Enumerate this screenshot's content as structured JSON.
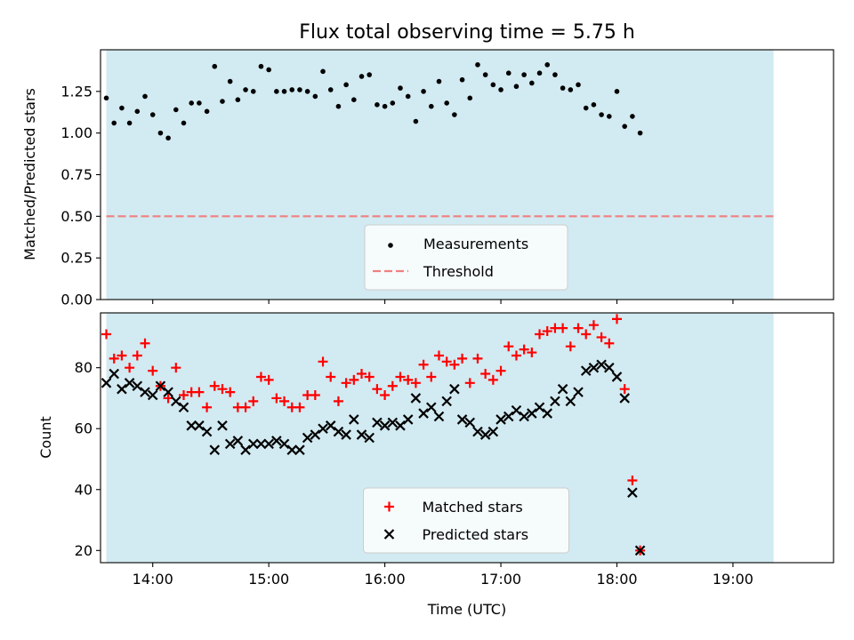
{
  "chart_data": {
    "type": "scatter",
    "title": "Flux total observing time = 5.75 h",
    "xlabel": "Time (UTC)",
    "x_ticks": [
      "14:00",
      "15:00",
      "16:00",
      "17:00",
      "18:00",
      "19:00"
    ],
    "xlim": [
      "13:33",
      "19:52"
    ],
    "observing_window": [
      "13:36",
      "19:21"
    ],
    "colors": {
      "window_fill": "#add8e6",
      "measurements": "#000000",
      "threshold": "#f08080",
      "matched": "#ff0000",
      "predicted": "#000000"
    },
    "panels": [
      {
        "ylabel": "Matched/Predicted stars",
        "ylim": [
          0,
          1.5
        ],
        "y_ticks": [
          "0.00",
          "0.25",
          "0.50",
          "0.75",
          "1.00",
          "1.25"
        ],
        "legend_position": "bottom-center",
        "legend": [
          "Measurements",
          "Threshold"
        ],
        "threshold": 0.5,
        "series": [
          {
            "name": "Measurements",
            "marker": "dot",
            "points": [
              [
                "13:36",
                1.21
              ],
              [
                "13:40",
                1.06
              ],
              [
                "13:44",
                1.15
              ],
              [
                "13:48",
                1.06
              ],
              [
                "13:52",
                1.13
              ],
              [
                "13:56",
                1.22
              ],
              [
                "14:00",
                1.11
              ],
              [
                "14:04",
                1.0
              ],
              [
                "14:08",
                0.97
              ],
              [
                "14:12",
                1.14
              ],
              [
                "14:16",
                1.06
              ],
              [
                "14:20",
                1.18
              ],
              [
                "14:24",
                1.18
              ],
              [
                "14:28",
                1.13
              ],
              [
                "14:32",
                1.4
              ],
              [
                "14:36",
                1.19
              ],
              [
                "14:40",
                1.31
              ],
              [
                "14:44",
                1.2
              ],
              [
                "14:48",
                1.26
              ],
              [
                "14:52",
                1.25
              ],
              [
                "14:56",
                1.4
              ],
              [
                "15:00",
                1.38
              ],
              [
                "15:04",
                1.25
              ],
              [
                "15:08",
                1.25
              ],
              [
                "15:12",
                1.26
              ],
              [
                "15:16",
                1.26
              ],
              [
                "15:20",
                1.25
              ],
              [
                "15:24",
                1.22
              ],
              [
                "15:28",
                1.37
              ],
              [
                "15:32",
                1.26
              ],
              [
                "15:36",
                1.16
              ],
              [
                "15:40",
                1.29
              ],
              [
                "15:44",
                1.2
              ],
              [
                "15:48",
                1.34
              ],
              [
                "15:52",
                1.35
              ],
              [
                "15:56",
                1.17
              ],
              [
                "16:00",
                1.16
              ],
              [
                "16:04",
                1.18
              ],
              [
                "16:08",
                1.27
              ],
              [
                "16:12",
                1.22
              ],
              [
                "16:16",
                1.07
              ],
              [
                "16:20",
                1.25
              ],
              [
                "16:24",
                1.16
              ],
              [
                "16:28",
                1.31
              ],
              [
                "16:32",
                1.18
              ],
              [
                "16:36",
                1.11
              ],
              [
                "16:40",
                1.32
              ],
              [
                "16:44",
                1.21
              ],
              [
                "16:48",
                1.41
              ],
              [
                "16:52",
                1.35
              ],
              [
                "16:56",
                1.29
              ],
              [
                "17:00",
                1.26
              ],
              [
                "17:04",
                1.36
              ],
              [
                "17:08",
                1.28
              ],
              [
                "17:12",
                1.35
              ],
              [
                "17:16",
                1.3
              ],
              [
                "17:20",
                1.36
              ],
              [
                "17:24",
                1.41
              ],
              [
                "17:28",
                1.35
              ],
              [
                "17:32",
                1.27
              ],
              [
                "17:36",
                1.26
              ],
              [
                "17:40",
                1.29
              ],
              [
                "17:44",
                1.15
              ],
              [
                "17:48",
                1.17
              ],
              [
                "17:52",
                1.11
              ],
              [
                "17:56",
                1.1
              ],
              [
                "18:00",
                1.25
              ],
              [
                "18:04",
                1.04
              ],
              [
                "18:08",
                1.1
              ],
              [
                "18:12",
                1.0
              ]
            ]
          }
        ]
      },
      {
        "ylabel": "Count",
        "ylim": [
          16,
          98
        ],
        "y_ticks": [
          "20",
          "40",
          "60",
          "80"
        ],
        "legend_position": "bottom-center",
        "legend": [
          "Matched stars",
          "Predicted stars"
        ],
        "series": [
          {
            "name": "Matched stars",
            "marker": "plus",
            "points": [
              [
                "13:36",
                91
              ],
              [
                "13:40",
                83
              ],
              [
                "13:44",
                84
              ],
              [
                "13:48",
                80
              ],
              [
                "13:52",
                84
              ],
              [
                "13:56",
                88
              ],
              [
                "14:00",
                79
              ],
              [
                "14:04",
                74
              ],
              [
                "14:08",
                70
              ],
              [
                "14:12",
                80
              ],
              [
                "14:16",
                71
              ],
              [
                "14:20",
                72
              ],
              [
                "14:24",
                72
              ],
              [
                "14:28",
                67
              ],
              [
                "14:32",
                74
              ],
              [
                "14:36",
                73
              ],
              [
                "14:40",
                72
              ],
              [
                "14:44",
                67
              ],
              [
                "14:48",
                67
              ],
              [
                "14:52",
                69
              ],
              [
                "14:56",
                77
              ],
              [
                "15:00",
                76
              ],
              [
                "15:04",
                70
              ],
              [
                "15:08",
                69
              ],
              [
                "15:12",
                67
              ],
              [
                "15:16",
                67
              ],
              [
                "15:20",
                71
              ],
              [
                "15:24",
                71
              ],
              [
                "15:28",
                82
              ],
              [
                "15:32",
                77
              ],
              [
                "15:36",
                69
              ],
              [
                "15:40",
                75
              ],
              [
                "15:44",
                76
              ],
              [
                "15:48",
                78
              ],
              [
                "15:52",
                77
              ],
              [
                "15:56",
                73
              ],
              [
                "16:00",
                71
              ],
              [
                "16:04",
                74
              ],
              [
                "16:08",
                77
              ],
              [
                "16:12",
                76
              ],
              [
                "16:16",
                75
              ],
              [
                "16:20",
                81
              ],
              [
                "16:24",
                77
              ],
              [
                "16:28",
                84
              ],
              [
                "16:32",
                82
              ],
              [
                "16:36",
                81
              ],
              [
                "16:40",
                83
              ],
              [
                "16:44",
                75
              ],
              [
                "16:48",
                83
              ],
              [
                "16:52",
                78
              ],
              [
                "16:56",
                76
              ],
              [
                "17:00",
                79
              ],
              [
                "17:04",
                87
              ],
              [
                "17:08",
                84
              ],
              [
                "17:12",
                86
              ],
              [
                "17:16",
                85
              ],
              [
                "17:20",
                91
              ],
              [
                "17:24",
                92
              ],
              [
                "17:28",
                93
              ],
              [
                "17:32",
                93
              ],
              [
                "17:36",
                87
              ],
              [
                "17:40",
                93
              ],
              [
                "17:44",
                91
              ],
              [
                "17:48",
                94
              ],
              [
                "17:52",
                90
              ],
              [
                "17:56",
                88
              ],
              [
                "18:00",
                96
              ],
              [
                "18:04",
                73
              ],
              [
                "18:08",
                43
              ],
              [
                "18:12",
                20
              ]
            ]
          },
          {
            "name": "Predicted stars",
            "marker": "x",
            "points": [
              [
                "13:36",
                75
              ],
              [
                "13:40",
                78
              ],
              [
                "13:44",
                73
              ],
              [
                "13:48",
                75
              ],
              [
                "13:52",
                74
              ],
              [
                "13:56",
                72
              ],
              [
                "14:00",
                71
              ],
              [
                "14:04",
                74
              ],
              [
                "14:08",
                72
              ],
              [
                "14:12",
                69
              ],
              [
                "14:16",
                67
              ],
              [
                "14:20",
                61
              ],
              [
                "14:24",
                61
              ],
              [
                "14:28",
                59
              ],
              [
                "14:32",
                53
              ],
              [
                "14:36",
                61
              ],
              [
                "14:40",
                55
              ],
              [
                "14:44",
                56
              ],
              [
                "14:48",
                53
              ],
              [
                "14:52",
                55
              ],
              [
                "14:56",
                55
              ],
              [
                "15:00",
                55
              ],
              [
                "15:04",
                56
              ],
              [
                "15:08",
                55
              ],
              [
                "15:12",
                53
              ],
              [
                "15:16",
                53
              ],
              [
                "15:20",
                57
              ],
              [
                "15:24",
                58
              ],
              [
                "15:28",
                60
              ],
              [
                "15:32",
                61
              ],
              [
                "15:36",
                59
              ],
              [
                "15:40",
                58
              ],
              [
                "15:44",
                63
              ],
              [
                "15:48",
                58
              ],
              [
                "15:52",
                57
              ],
              [
                "15:56",
                62
              ],
              [
                "16:00",
                61
              ],
              [
                "16:04",
                62
              ],
              [
                "16:08",
                61
              ],
              [
                "16:12",
                63
              ],
              [
                "16:16",
                70
              ],
              [
                "16:20",
                65
              ],
              [
                "16:24",
                67
              ],
              [
                "16:28",
                64
              ],
              [
                "16:32",
                69
              ],
              [
                "16:36",
                73
              ],
              [
                "16:40",
                63
              ],
              [
                "16:44",
                62
              ],
              [
                "16:48",
                59
              ],
              [
                "16:52",
                58
              ],
              [
                "16:56",
                59
              ],
              [
                "17:00",
                63
              ],
              [
                "17:04",
                64
              ],
              [
                "17:08",
                66
              ],
              [
                "17:12",
                64
              ],
              [
                "17:16",
                65
              ],
              [
                "17:20",
                67
              ],
              [
                "17:24",
                65
              ],
              [
                "17:28",
                69
              ],
              [
                "17:32",
                73
              ],
              [
                "17:36",
                69
              ],
              [
                "17:40",
                72
              ],
              [
                "17:44",
                79
              ],
              [
                "17:48",
                80
              ],
              [
                "17:52",
                81
              ],
              [
                "17:56",
                80
              ],
              [
                "18:00",
                77
              ],
              [
                "18:04",
                70
              ],
              [
                "18:08",
                39
              ],
              [
                "18:12",
                20
              ]
            ]
          }
        ]
      }
    ]
  }
}
